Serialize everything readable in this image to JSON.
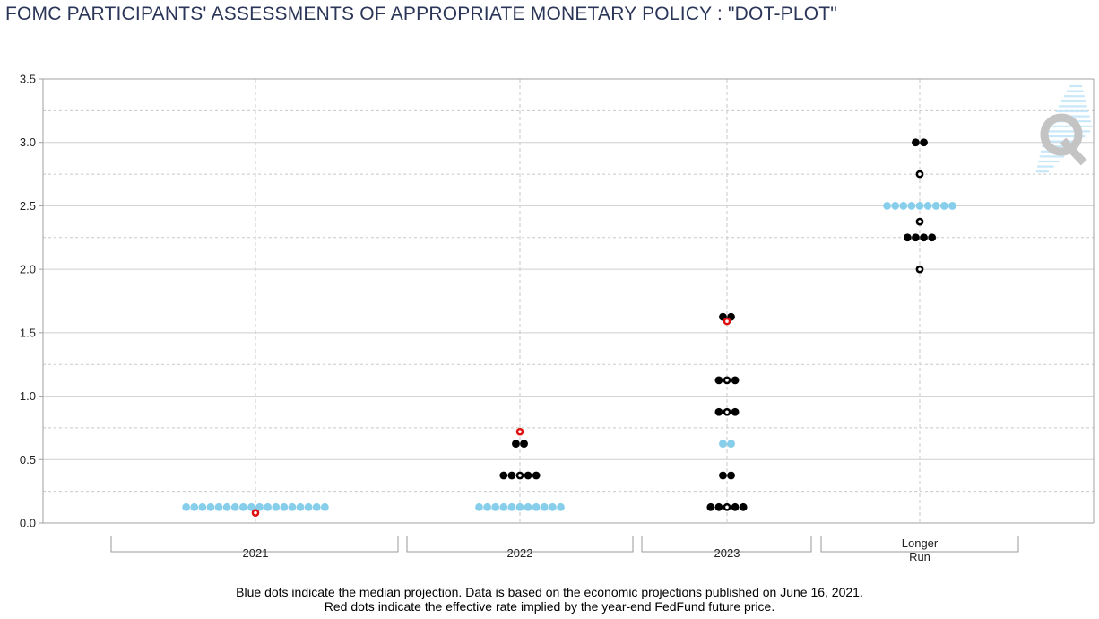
{
  "title": "FOMC PARTICIPANTS' ASSESSMENTS OF APPROPRIATE MONETARY POLICY : \"DOT-PLOT\"",
  "footnote": {
    "line1": "Blue dots indicate the median projection. Data is based on the economic projections published on June 16, 2021.",
    "line2": "Red dots indicate the effective rate implied by the year-end FedFund future price."
  },
  "colors": {
    "median": "#87ceeb",
    "participant": "#000000",
    "implied": "#e01010",
    "grid": "#c8c8c8",
    "axis": "#a0a0a0",
    "watermark_q": "#c4c4c4",
    "watermark_lines": "#bfe3f7"
  },
  "chart_data": {
    "type": "scatter",
    "ylim": [
      0,
      3.5
    ],
    "yticks": [
      "0.0",
      "0.5",
      "1.0",
      "1.5",
      "2.0",
      "2.5",
      "3.0",
      "3.5"
    ],
    "grid": true,
    "categories": [
      "2021",
      "2022",
      "2023",
      "Longer Run"
    ],
    "category_labels": [
      [
        "2021"
      ],
      [
        "2022"
      ],
      [
        "2023"
      ],
      [
        "Longer",
        "Run"
      ]
    ],
    "series": [
      {
        "role": "median",
        "points": [
          {
            "x": "2021",
            "y": 0.125,
            "count": 18
          },
          {
            "x": "2022",
            "y": 0.125,
            "count": 11
          },
          {
            "x": "2023",
            "y": 0.625,
            "count": 2
          },
          {
            "x": "Longer Run",
            "y": 2.5,
            "count": 9
          }
        ]
      },
      {
        "role": "participants",
        "points": [
          {
            "x": "2022",
            "y": 0.375,
            "count": 5
          },
          {
            "x": "2022",
            "y": 0.625,
            "count": 2
          },
          {
            "x": "2023",
            "y": 0.125,
            "count": 5
          },
          {
            "x": "2023",
            "y": 0.375,
            "count": 2
          },
          {
            "x": "2023",
            "y": 0.875,
            "count": 3
          },
          {
            "x": "2023",
            "y": 1.125,
            "count": 3
          },
          {
            "x": "2023",
            "y": 1.625,
            "count": 2
          },
          {
            "x": "Longer Run",
            "y": 2.0,
            "count": 1
          },
          {
            "x": "Longer Run",
            "y": 2.25,
            "count": 4
          },
          {
            "x": "Longer Run",
            "y": 2.375,
            "count": 1
          },
          {
            "x": "Longer Run",
            "y": 2.75,
            "count": 1
          },
          {
            "x": "Longer Run",
            "y": 3.0,
            "count": 2
          }
        ]
      },
      {
        "role": "implied",
        "points": [
          {
            "x": "2021",
            "y": 0.08
          },
          {
            "x": "2022",
            "y": 0.72
          },
          {
            "x": "2023",
            "y": 1.59
          }
        ]
      }
    ]
  }
}
